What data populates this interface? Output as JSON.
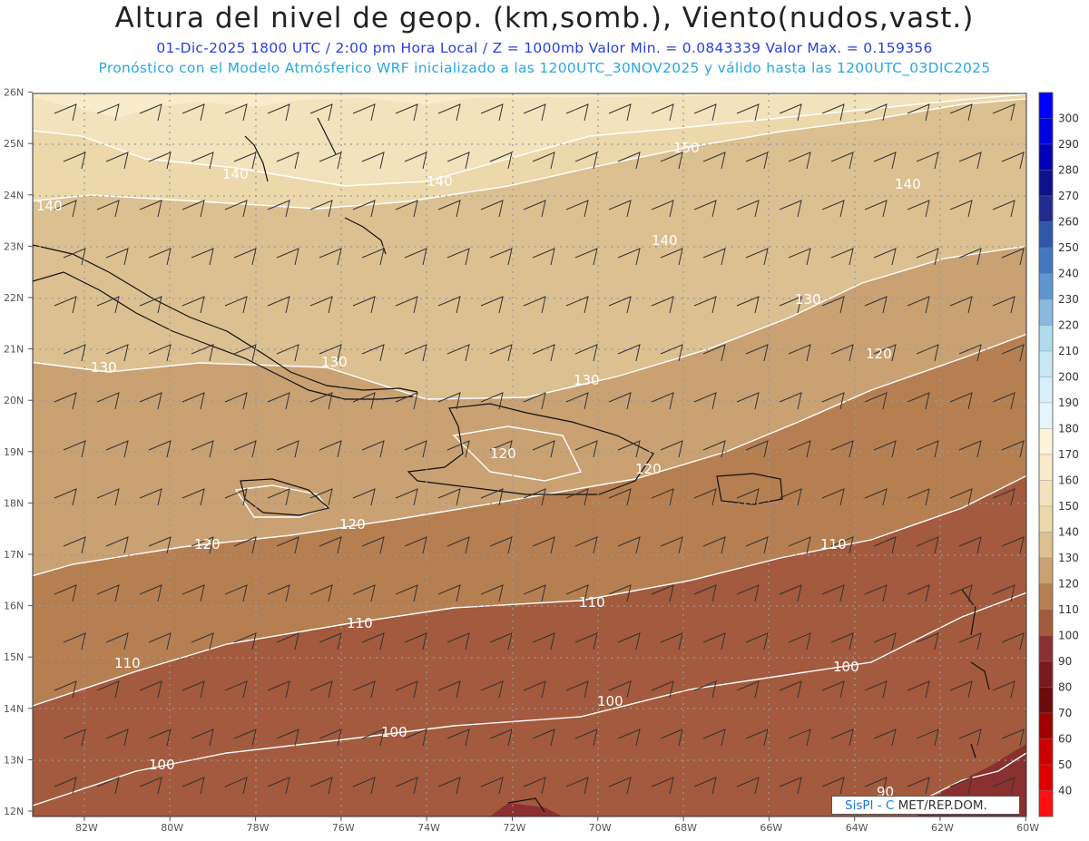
{
  "header": {
    "title": "Altura del nivel de geop. (km,somb.), Viento(nudos,vast.)",
    "subtitle1": "01-Dic-2025  1800 UTC / 2:00 pm Hora Local / Z = 1000mb  Valor Min. = 0.0843339  Valor Max. = 0.159356",
    "subtitle2": "Pronóstico con el Modelo Atmósferico WRF inicializado a las 1200UTC_30NOV2025 y válido hasta las  1200UTC_03DIC2025"
  },
  "map": {
    "lon_range": [
      -83,
      -60
    ],
    "lat_range": [
      12,
      26
    ],
    "lat_labels": [
      "12N",
      "13N",
      "14N",
      "15N",
      "16N",
      "17N",
      "18N",
      "19N",
      "20N",
      "21N",
      "22N",
      "23N",
      "24N",
      "25N",
      "26N"
    ],
    "lon_labels": [
      "82W",
      "80W",
      "78W",
      "76W",
      "74W",
      "72W",
      "70W",
      "68W",
      "66W",
      "64W",
      "62W",
      "60W"
    ],
    "contour_labels": [
      "140",
      "150",
      "140",
      "140",
      "130",
      "130",
      "130",
      "130",
      "120",
      "120",
      "120",
      "120",
      "120",
      "110",
      "110",
      "110",
      "110",
      "100",
      "100",
      "100",
      "100",
      "90",
      "140",
      "140"
    ]
  },
  "colorbar": {
    "levels": [
      {
        "label": "300",
        "color": "#0000ff"
      },
      {
        "label": "290",
        "color": "#0000e0"
      },
      {
        "label": "280",
        "color": "#0000b8"
      },
      {
        "label": "270",
        "color": "#10108c"
      },
      {
        "label": "260",
        "color": "#222a90"
      },
      {
        "label": "250",
        "color": "#2f56a8"
      },
      {
        "label": "240",
        "color": "#4278c0"
      },
      {
        "label": "230",
        "color": "#6096cf"
      },
      {
        "label": "220",
        "color": "#8ab8df"
      },
      {
        "label": "210",
        "color": "#b0dbef"
      },
      {
        "label": "200",
        "color": "#c8e8f4"
      },
      {
        "label": "190",
        "color": "#d8eef8"
      },
      {
        "label": "180",
        "color": "#e6f4fb"
      },
      {
        "label": "170",
        "color": "#fcf4d8"
      },
      {
        "label": "160",
        "color": "#f8eccb"
      },
      {
        "label": "150",
        "color": "#f2e3bd"
      },
      {
        "label": "140",
        "color": "#ecd8ab"
      },
      {
        "label": "130",
        "color": "#dcc092"
      },
      {
        "label": "120",
        "color": "#c9a173"
      },
      {
        "label": "110",
        "color": "#b67f52"
      },
      {
        "label": "100",
        "color": "#a35a3e"
      },
      {
        "label": "90",
        "color": "#8b3030"
      },
      {
        "label": "80",
        "color": "#7a1a1e"
      },
      {
        "label": "70",
        "color": "#6d0a0a"
      },
      {
        "label": "60",
        "color": "#a00000"
      },
      {
        "label": "50",
        "color": "#cc0000"
      },
      {
        "label": "40",
        "color": "#e00000"
      },
      {
        "label": "",
        "color": "#ff1010"
      }
    ]
  },
  "credit": {
    "part1": "SisPI - C",
    "part2": "MET/REP.DOM."
  }
}
